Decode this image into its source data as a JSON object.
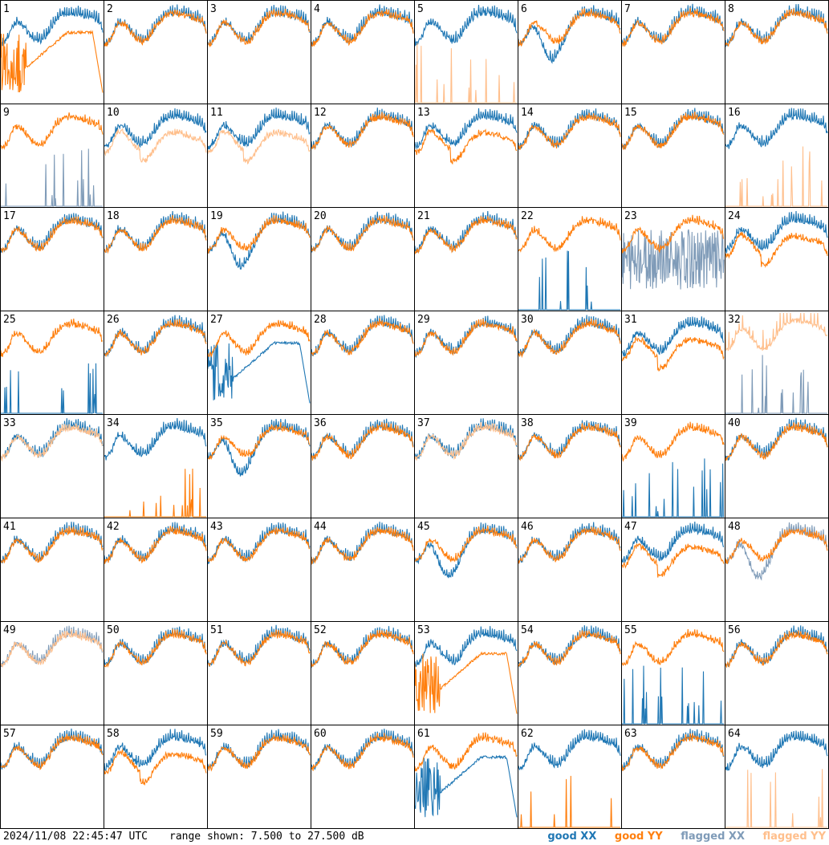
{
  "footer": {
    "timestamp": "2024/11/08 22:45:47 UTC",
    "range_text": "range shown: 7.500 to 27.500 dB"
  },
  "legend": [
    {
      "label": "good XX",
      "color": "#1f77b4"
    },
    {
      "label": "good YY",
      "color": "#ff7f0e"
    },
    {
      "label": "flagged XX",
      "color": "#7f9bb8"
    },
    {
      "label": "flagged YY",
      "color": "#ffbf8c"
    }
  ],
  "colors": {
    "good_xx": "#1f77b4",
    "good_yy": "#ff7f0e",
    "flagged_xx": "#7f9bb8",
    "flagged_yy": "#ffbf8c",
    "border": "#000000"
  },
  "chart_data": {
    "type": "line",
    "layout": "8x8 grid of per-antenna spectra",
    "ylim": [
      7.5,
      27.5
    ],
    "yunit": "dB",
    "series_kinds": [
      "good XX",
      "good YY",
      "flagged XX",
      "flagged YY"
    ],
    "panels": [
      {
        "id": 1,
        "xx": "normal",
        "yy": "ramp_cut"
      },
      {
        "id": 2,
        "xx": "normal",
        "yy": "normal"
      },
      {
        "id": 3,
        "xx": "normal",
        "yy": "normal"
      },
      {
        "id": 4,
        "xx": "normal",
        "yy": "normal"
      },
      {
        "id": 5,
        "xx": "normal",
        "yy": "flag_spikes",
        "yy_flag": true
      },
      {
        "id": 6,
        "xx": "dip",
        "yy": "normal"
      },
      {
        "id": 7,
        "xx": "normal",
        "yy": "normal"
      },
      {
        "id": 8,
        "xx": "normal",
        "yy": "normal"
      },
      {
        "id": 9,
        "xx": "flag_spikes",
        "xx_flag": true,
        "yy": "normal"
      },
      {
        "id": 10,
        "xx": "normal",
        "yy": "low",
        "yy_flag": true
      },
      {
        "id": 11,
        "xx": "normal",
        "yy": "low",
        "yy_flag": true
      },
      {
        "id": 12,
        "xx": "normal",
        "yy": "normal"
      },
      {
        "id": 13,
        "xx": "normal",
        "yy": "low"
      },
      {
        "id": 14,
        "xx": "normal",
        "yy": "normal"
      },
      {
        "id": 15,
        "xx": "normal",
        "yy": "normal"
      },
      {
        "id": 16,
        "xx": "normal",
        "yy": "flag_spikes",
        "yy_flag": true
      },
      {
        "id": 17,
        "xx": "normal",
        "yy": "normal"
      },
      {
        "id": 18,
        "xx": "normal",
        "yy": "normal"
      },
      {
        "id": 19,
        "xx": "dip",
        "yy": "normal"
      },
      {
        "id": 20,
        "xx": "normal",
        "yy": "normal"
      },
      {
        "id": 21,
        "xx": "normal",
        "yy": "normal"
      },
      {
        "id": 22,
        "xx": "flag_spikes",
        "yy": "normal"
      },
      {
        "id": 23,
        "xx": "noisy",
        "xx_flag": true,
        "yy": "normal"
      },
      {
        "id": 24,
        "xx": "normal",
        "yy": "low"
      },
      {
        "id": 25,
        "xx": "flag_spikes",
        "yy": "normal"
      },
      {
        "id": 26,
        "xx": "normal",
        "yy": "normal"
      },
      {
        "id": 27,
        "xx": "ramp_cut",
        "yy": "normal"
      },
      {
        "id": 28,
        "xx": "normal",
        "yy": "normal"
      },
      {
        "id": 29,
        "xx": "normal",
        "yy": "normal"
      },
      {
        "id": 30,
        "xx": "normal",
        "yy": "normal"
      },
      {
        "id": 31,
        "xx": "normal",
        "yy": "low"
      },
      {
        "id": 32,
        "xx": "flag_spikes",
        "xx_flag": true,
        "yy": "spiky_high",
        "yy_flag": true
      },
      {
        "id": 33,
        "xx": "normal",
        "yy": "normal",
        "yy_flag": true
      },
      {
        "id": 34,
        "xx": "normal",
        "yy": "flag_spikes"
      },
      {
        "id": 35,
        "xx": "dip",
        "yy": "normal"
      },
      {
        "id": 36,
        "xx": "normal",
        "yy": "normal"
      },
      {
        "id": 37,
        "xx": "normal",
        "yy": "normal",
        "yy_flag": true
      },
      {
        "id": 38,
        "xx": "normal",
        "yy": "normal"
      },
      {
        "id": 39,
        "xx": "flag_spikes",
        "yy": "normal"
      },
      {
        "id": 40,
        "xx": "normal",
        "yy": "normal"
      },
      {
        "id": 41,
        "xx": "normal",
        "yy": "normal"
      },
      {
        "id": 42,
        "xx": "normal",
        "yy": "normal"
      },
      {
        "id": 43,
        "xx": "normal",
        "yy": "normal"
      },
      {
        "id": 44,
        "xx": "normal",
        "yy": "normal"
      },
      {
        "id": 45,
        "xx": "dip",
        "yy": "normal"
      },
      {
        "id": 46,
        "xx": "normal",
        "yy": "normal"
      },
      {
        "id": 47,
        "xx": "normal",
        "yy": "low"
      },
      {
        "id": 48,
        "xx": "dip",
        "xx_flag": true,
        "yy": "normal"
      },
      {
        "id": 49,
        "xx": "normal",
        "xx_flag": true,
        "yy": "normal",
        "yy_flag": true
      },
      {
        "id": 50,
        "xx": "normal",
        "yy": "normal"
      },
      {
        "id": 51,
        "xx": "normal",
        "yy": "normal"
      },
      {
        "id": 52,
        "xx": "normal",
        "yy": "normal"
      },
      {
        "id": 53,
        "xx": "normal",
        "yy": "ramp_cut"
      },
      {
        "id": 54,
        "xx": "normal",
        "yy": "normal"
      },
      {
        "id": 55,
        "xx": "flag_spikes",
        "yy": "normal"
      },
      {
        "id": 56,
        "xx": "normal",
        "yy": "normal"
      },
      {
        "id": 57,
        "xx": "normal",
        "yy": "normal"
      },
      {
        "id": 58,
        "xx": "normal",
        "yy": "low"
      },
      {
        "id": 59,
        "xx": "normal",
        "yy": "normal"
      },
      {
        "id": 60,
        "xx": "normal",
        "yy": "normal"
      },
      {
        "id": 61,
        "xx": "ramp_cut",
        "yy": "normal"
      },
      {
        "id": 62,
        "xx": "normal",
        "yy": "flag_spikes"
      },
      {
        "id": 63,
        "xx": "normal",
        "yy": "normal"
      },
      {
        "id": 64,
        "xx": "normal",
        "yy": "flag_spikes",
        "yy_flag": true
      }
    ]
  }
}
